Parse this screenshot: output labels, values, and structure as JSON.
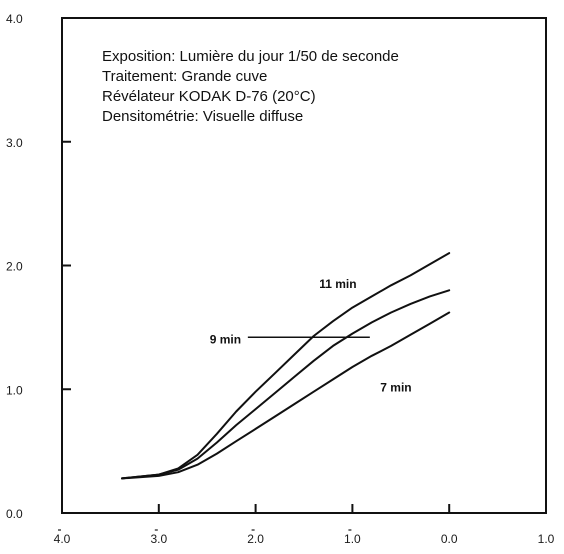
{
  "chart_data": {
    "type": "line",
    "x_tick_labels": [
      "4.0",
      "3.0",
      "2.0",
      "1.0",
      "0.0",
      "1.0"
    ],
    "x_tick_bar": [
      true,
      true,
      true,
      true,
      false,
      false
    ],
    "y_tick_labels": [
      "0.0",
      "1.0",
      "2.0",
      "3.0",
      "4.0"
    ],
    "xlim": [
      -4.0,
      1.0
    ],
    "ylim": [
      0.0,
      4.0
    ],
    "x_ticks": [
      -4.0,
      -3.0,
      -2.0,
      -1.0,
      0.0,
      1.0
    ],
    "y_ticks": [
      0.0,
      1.0,
      2.0,
      3.0,
      4.0
    ],
    "grid": false,
    "annotation_lines": [
      "Exposition: Lumière du jour 1/50 de seconde",
      "Traitement: Grande cuve",
      "Révélateur KODAK D-76 (20°C)",
      "Densitométrie: Visuelle diffuse"
    ],
    "series": [
      {
        "name": "11 min",
        "x": [
          -3.38,
          -3.0,
          -2.8,
          -2.6,
          -2.4,
          -2.2,
          -2.0,
          -1.8,
          -1.6,
          -1.4,
          -1.2,
          -1.0,
          -0.8,
          -0.6,
          -0.4,
          -0.2,
          0.0
        ],
        "y": [
          0.28,
          0.31,
          0.36,
          0.47,
          0.64,
          0.82,
          0.98,
          1.13,
          1.28,
          1.43,
          1.55,
          1.66,
          1.75,
          1.84,
          1.92,
          2.01,
          2.1
        ]
      },
      {
        "name": "9 min",
        "x": [
          -3.38,
          -3.0,
          -2.8,
          -2.6,
          -2.4,
          -2.2,
          -2.0,
          -1.8,
          -1.6,
          -1.4,
          -1.2,
          -1.0,
          -0.8,
          -0.6,
          -0.4,
          -0.2,
          0.0
        ],
        "y": [
          0.28,
          0.31,
          0.35,
          0.44,
          0.57,
          0.71,
          0.84,
          0.97,
          1.1,
          1.23,
          1.35,
          1.45,
          1.54,
          1.62,
          1.69,
          1.75,
          1.8
        ]
      },
      {
        "name": "7 min",
        "x": [
          -3.38,
          -3.0,
          -2.8,
          -2.6,
          -2.4,
          -2.2,
          -2.0,
          -1.8,
          -1.6,
          -1.4,
          -1.2,
          -1.0,
          -0.8,
          -0.6,
          -0.4,
          -0.2,
          0.0
        ],
        "y": [
          0.28,
          0.3,
          0.33,
          0.39,
          0.48,
          0.58,
          0.68,
          0.78,
          0.88,
          0.98,
          1.08,
          1.18,
          1.27,
          1.35,
          1.44,
          1.53,
          1.62
        ]
      }
    ]
  }
}
